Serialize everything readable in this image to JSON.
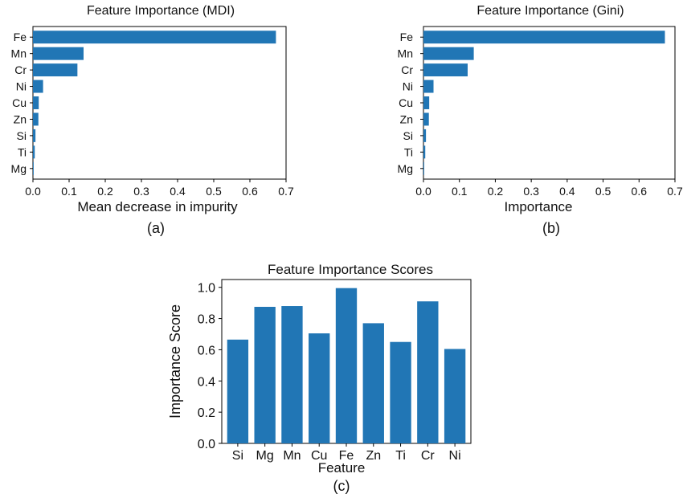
{
  "colors": {
    "bar": "#2176b5",
    "axis": "#000000",
    "text": "#111111"
  },
  "chart_data": [
    {
      "type": "bar",
      "orientation": "horizontal",
      "title": "Feature Importance (MDI)",
      "xlabel": "Mean decrease in impurity",
      "ylabel": "",
      "panel_label": "(a)",
      "categories": [
        "Fe",
        "Mn",
        "Cr",
        "Ni",
        "Cu",
        "Zn",
        "Si",
        "Ti",
        "Mg"
      ],
      "values": [
        0.672,
        0.14,
        0.123,
        0.028,
        0.016,
        0.015,
        0.007,
        0.005,
        0.002
      ],
      "xlim": [
        0,
        0.7
      ],
      "xticks": [
        "0.0",
        "0.1",
        "0.2",
        "0.3",
        "0.4",
        "0.5",
        "0.6",
        "0.7"
      ],
      "grid": false
    },
    {
      "type": "bar",
      "orientation": "horizontal",
      "title": "Feature Importance (Gini)",
      "xlabel": "Importance",
      "ylabel": "",
      "panel_label": "(b)",
      "categories": [
        "Fe",
        "Mn",
        "Cr",
        "Ni",
        "Cu",
        "Zn",
        "Si",
        "Ti",
        "Mg"
      ],
      "values": [
        0.672,
        0.14,
        0.123,
        0.028,
        0.016,
        0.015,
        0.007,
        0.005,
        0.002
      ],
      "xlim": [
        0,
        0.7
      ],
      "xticks": [
        "0.0",
        "0.1",
        "0.2",
        "0.3",
        "0.4",
        "0.5",
        "0.6",
        "0.7"
      ],
      "grid": false
    },
    {
      "type": "bar",
      "orientation": "vertical",
      "title": "Feature Importance Scores",
      "xlabel": "Feature",
      "ylabel": "Importance Score",
      "panel_label": "(c)",
      "categories": [
        "Si",
        "Mg",
        "Mn",
        "Cu",
        "Fe",
        "Zn",
        "Ti",
        "Cr",
        "Ni"
      ],
      "values": [
        0.665,
        0.875,
        0.88,
        0.705,
        0.995,
        0.77,
        0.65,
        0.91,
        0.605
      ],
      "ylim": [
        0,
        1.05
      ],
      "yticks": [
        "0.0",
        "0.2",
        "0.4",
        "0.6",
        "0.8",
        "1.0"
      ],
      "grid": false
    }
  ]
}
